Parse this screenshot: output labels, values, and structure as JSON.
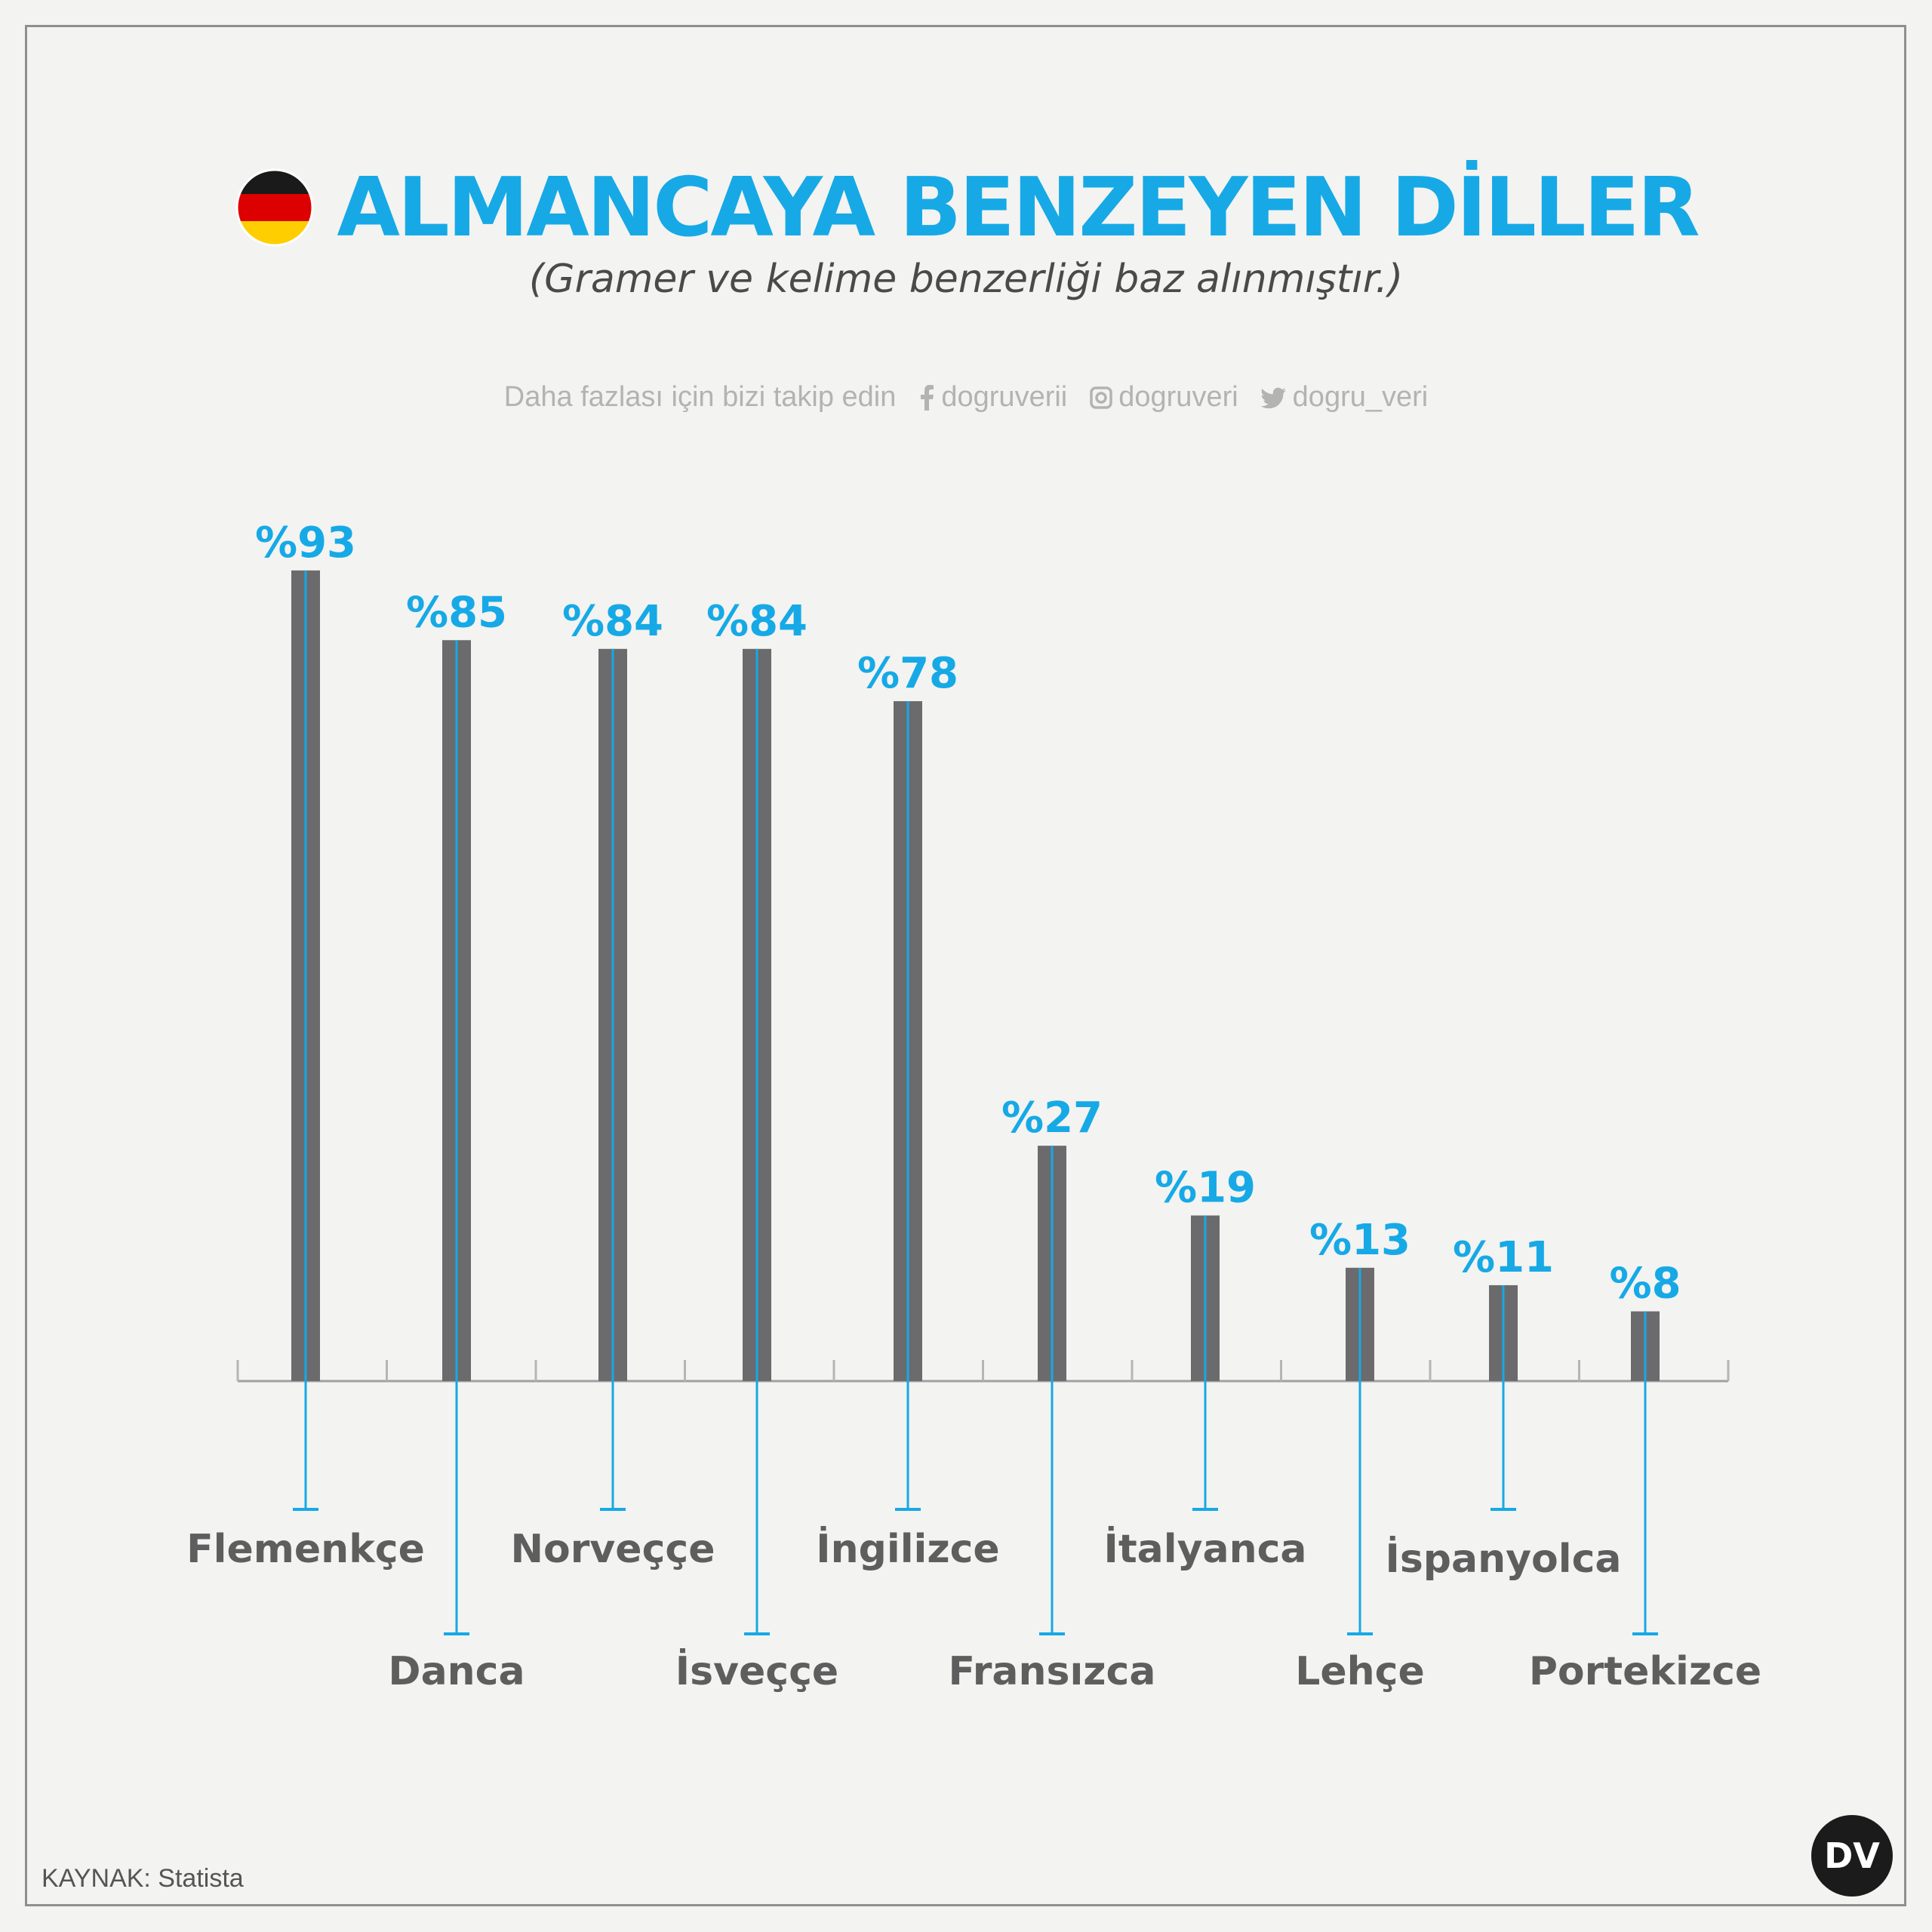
{
  "title": "ALMANCAYA BENZEYEN DİLLER",
  "subtitle": "(Gramer ve kelime benzerliği baz alınmıştır.)",
  "social": {
    "prompt": "Daha fazlası için bizi takip edin",
    "facebook": "dogruverii",
    "instagram": "dogruveri",
    "twitter": "dogru_veri"
  },
  "source": "KAYNAK:  Statista",
  "logo_text": "DV",
  "colors": {
    "bar": "#6b6b6d",
    "accent": "#16a9e6",
    "label": "#5e5e5e",
    "flag_black": "#1a1a1a",
    "flag_red": "#dd0000",
    "flag_gold": "#ffce00"
  },
  "chart_data": {
    "type": "bar",
    "categories": [
      "Flemenkçe",
      "Danca",
      "Norveççe",
      "İsveççe",
      "İngilizce",
      "Fransızca",
      "İtalyanca",
      "Lehçe",
      "İspanyolca",
      "Portekizce"
    ],
    "values": [
      93,
      85,
      84,
      84,
      78,
      27,
      19,
      13,
      11,
      8
    ],
    "value_labels": [
      "%93",
      "%85",
      "%84",
      "%84",
      "%78",
      "%27",
      "%19",
      "%13",
      "%11",
      "%8"
    ],
    "ylim": [
      0,
      100
    ],
    "grid": false,
    "legend": "none"
  }
}
